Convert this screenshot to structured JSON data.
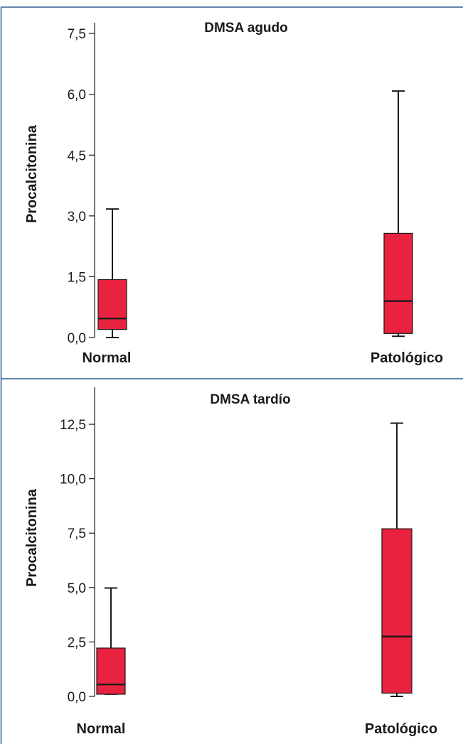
{
  "colors": {
    "box_fill": "#e8223f",
    "frame": "#2e5f8f",
    "ink": "#1a1a1a"
  },
  "chart_data": [
    {
      "type": "boxplot",
      "title": "DMSA agudo",
      "ylabel": "Procalcitonina",
      "xlabel": "",
      "ylim": [
        0,
        7.8
      ],
      "yticks": [
        {
          "value": 0,
          "label": "0,0"
        },
        {
          "value": 1.5,
          "label": "1,5"
        },
        {
          "value": 3.0,
          "label": "3,0"
        },
        {
          "value": 4.5,
          "label": "4,5"
        },
        {
          "value": 6.0,
          "label": "6,0"
        },
        {
          "value": 7.5,
          "label": "7,5"
        }
      ],
      "grid": false,
      "series": [
        {
          "category": "Normal",
          "whisker_low": 0.0,
          "q1": 0.2,
          "median": 0.47,
          "q3": 1.43,
          "whisker_high": 3.17
        },
        {
          "category": "Patológico",
          "whisker_low": 0.03,
          "q1": 0.1,
          "median": 0.9,
          "q3": 2.57,
          "whisker_high": 6.08
        }
      ]
    },
    {
      "type": "boxplot",
      "title": "DMSA tardío",
      "ylabel": "Procalcitonina",
      "xlabel": "",
      "ylim": [
        0,
        14.2
      ],
      "yticks": [
        {
          "value": 0,
          "label": "0,0"
        },
        {
          "value": 2.5,
          "label": "2,5"
        },
        {
          "value": 5.0,
          "label": "5,0"
        },
        {
          "value": 7.5,
          "label": "7,5"
        },
        {
          "value": 10.0,
          "label": "10,0"
        },
        {
          "value": 12.5,
          "label": "12,5"
        }
      ],
      "grid": false,
      "series": [
        {
          "category": "Normal",
          "whisker_low": 0.1,
          "q1": 0.1,
          "median": 0.55,
          "q3": 2.22,
          "whisker_high": 4.98
        },
        {
          "category": "Patológico",
          "whisker_low": 0.0,
          "q1": 0.15,
          "median": 2.75,
          "q3": 7.7,
          "whisker_high": 12.55
        }
      ]
    }
  ]
}
